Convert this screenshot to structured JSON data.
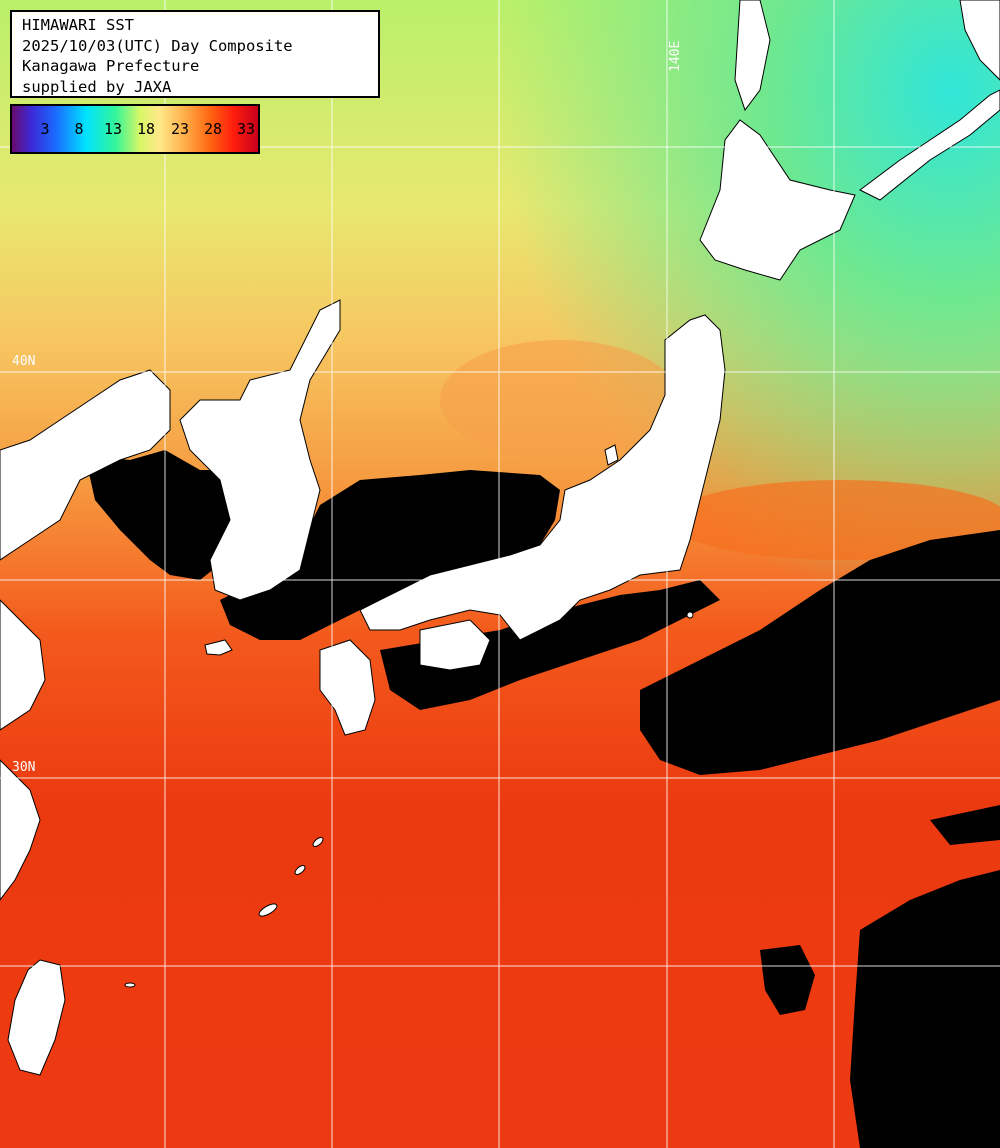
{
  "title_box": {
    "line1": "HIMAWARI SST",
    "line2": "2025/10/03(UTC) Day Composite",
    "line3": "Kanagawa Prefecture",
    "line4": "supplied by JAXA"
  },
  "legend": {
    "ticks": [
      "3",
      "8",
      "13",
      "18",
      "23",
      "28",
      "33"
    ],
    "colors": {
      "cold": "#6a0a6e",
      "cool": "#1a6cff",
      "cyan": "#00e2ff",
      "green": "#33f59a",
      "yellow": "#ffe88a",
      "orange": "#ff6a12",
      "hot": "#c8001c"
    }
  },
  "grid_labels": {
    "lon_140": "140E",
    "lat_40": "40N",
    "lat_30": "30N"
  },
  "map_colors": {
    "land": "#ffffff",
    "cloud_mask": "#000000",
    "grid": "#ffffff"
  }
}
